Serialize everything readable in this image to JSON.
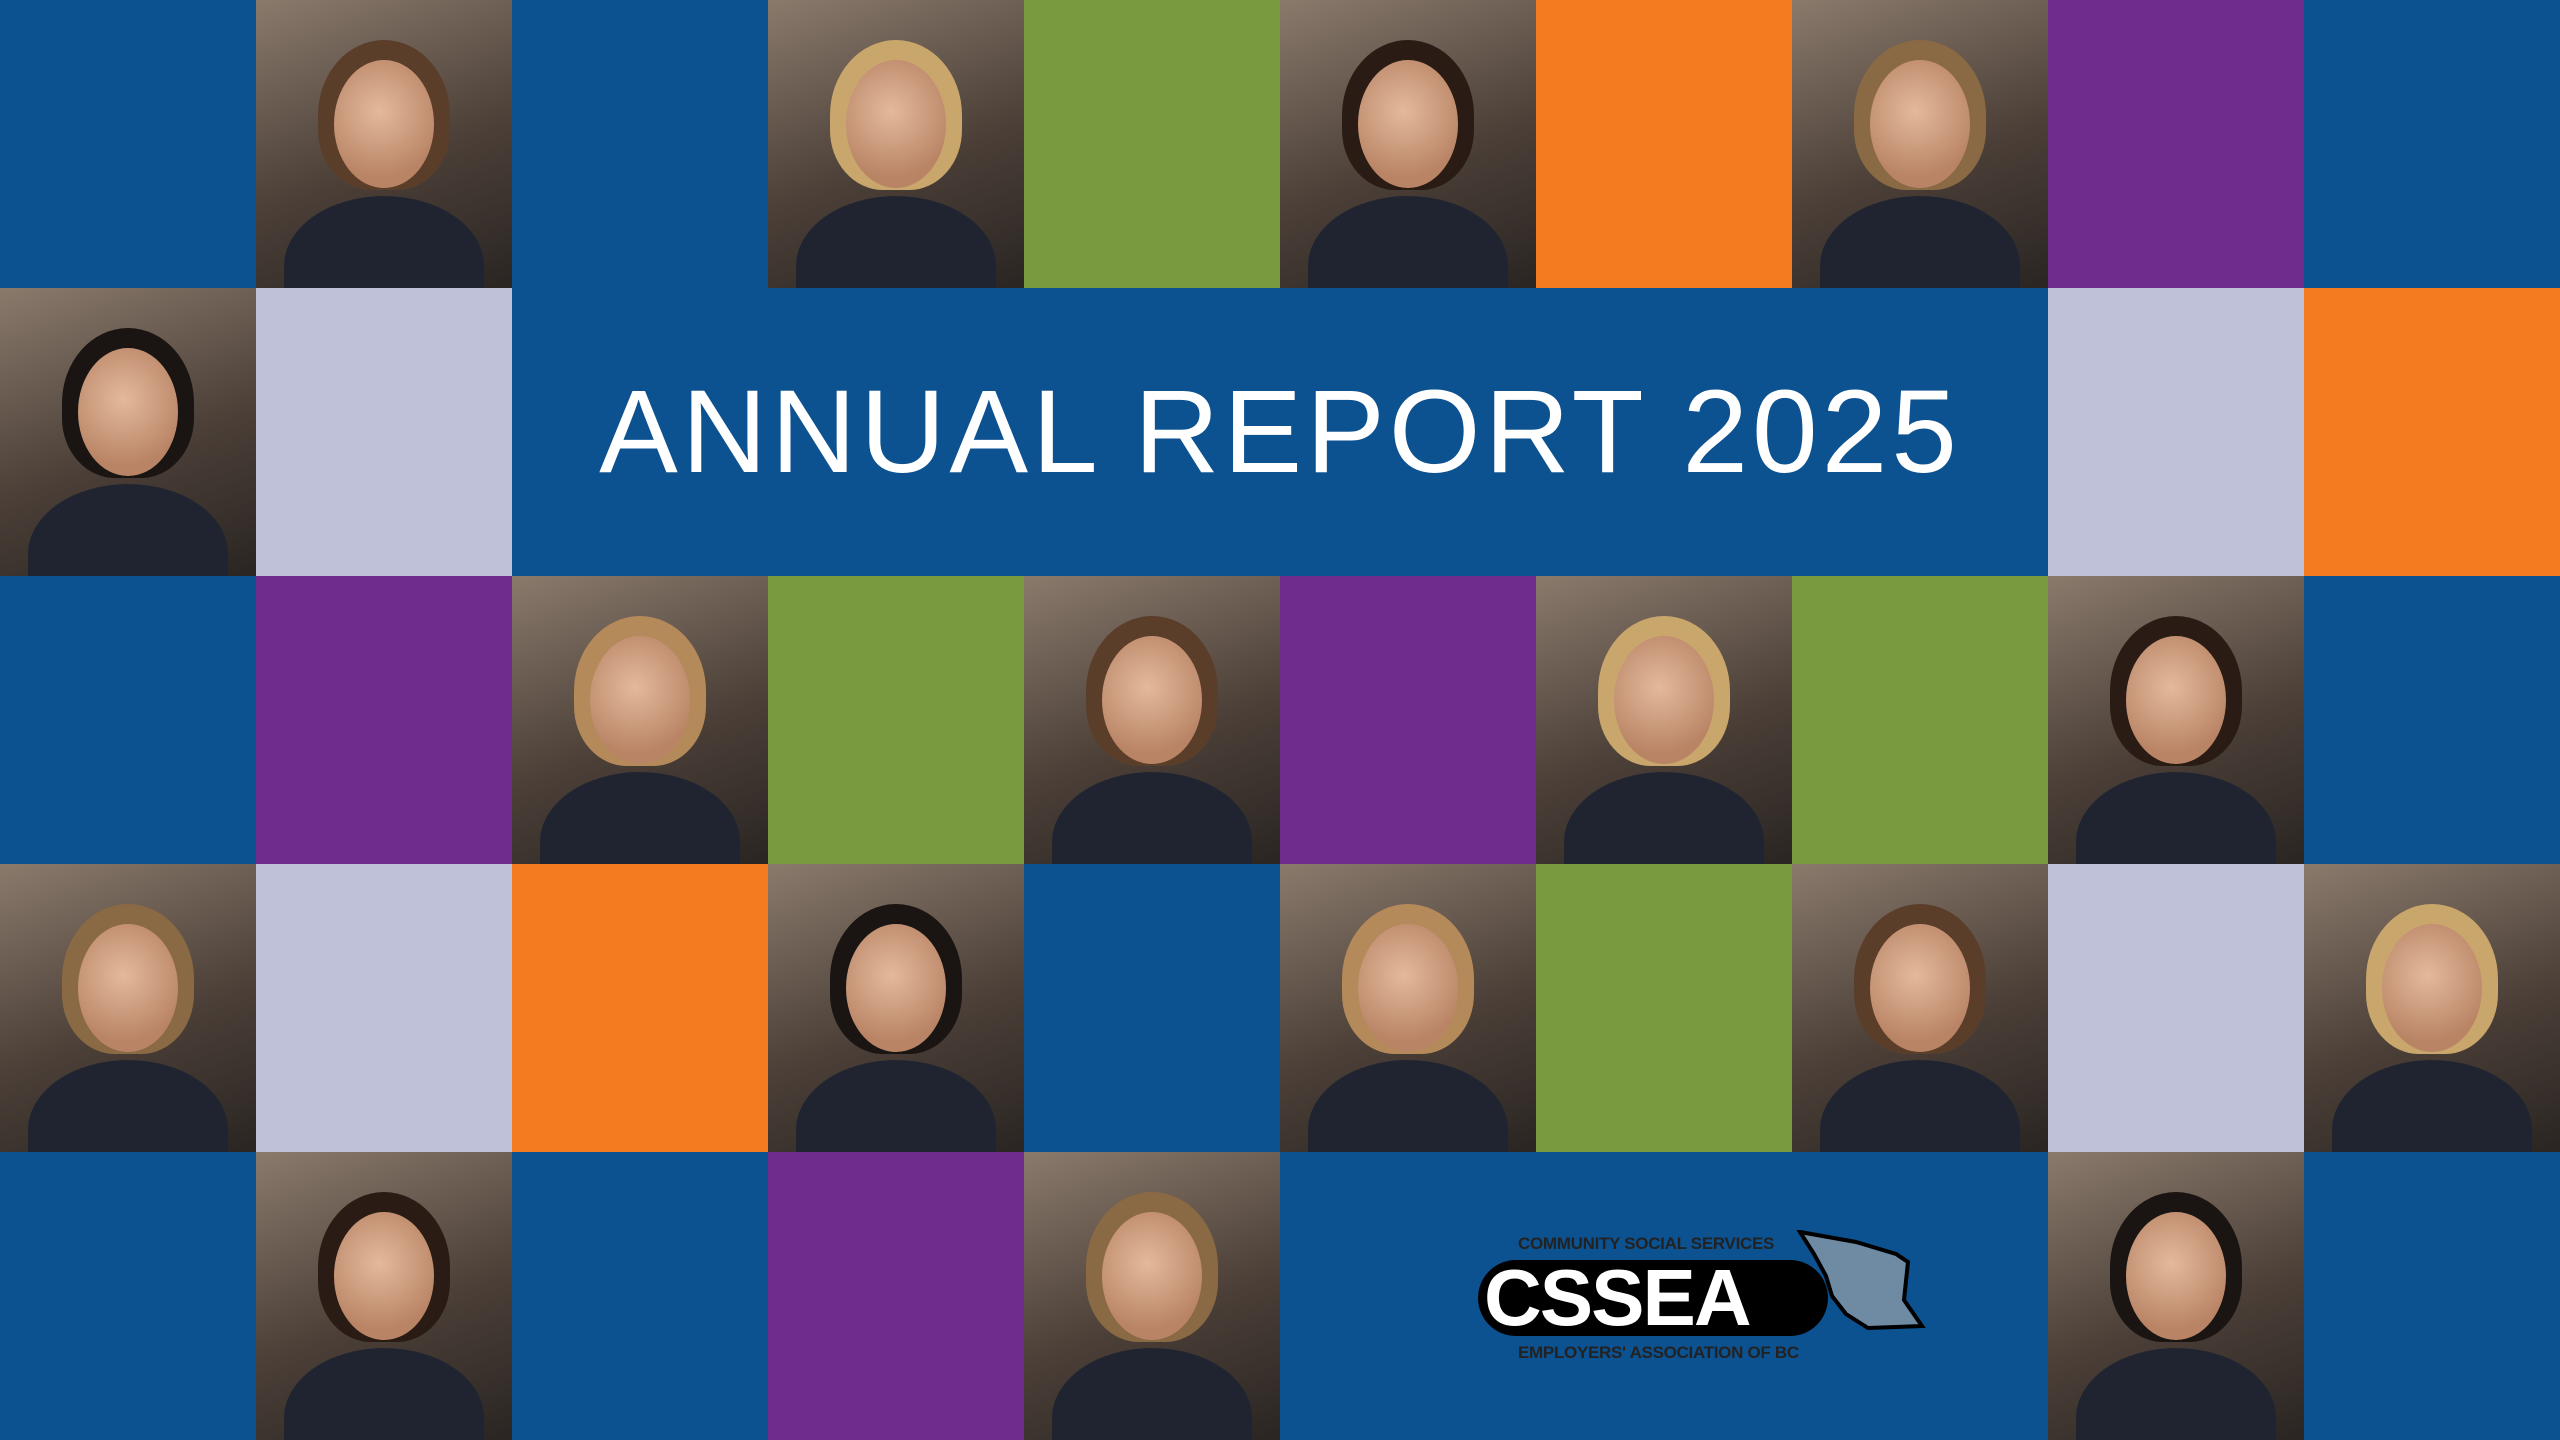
{
  "title": "ANNUAL REPORT 2025",
  "colors": {
    "blue": "#0c5190",
    "green": "#7a9a3e",
    "orange": "#f47b20",
    "purple": "#6f2c8c",
    "lavender": "#bfc1d9"
  },
  "grid": [
    [
      "blue",
      "photo",
      "blue",
      "photo",
      "green",
      "photo",
      "orange",
      "photo",
      "purple",
      "blue"
    ],
    [
      "photo",
      "lavender",
      "title",
      "title",
      "title",
      "title",
      "title",
      "title",
      "lavender",
      "orange"
    ],
    [
      "blue",
      "purple",
      "photo",
      "green",
      "photo",
      "purple",
      "photo",
      "green",
      "photo",
      "blue"
    ],
    [
      "photo",
      "lavender",
      "orange",
      "photo",
      "blue",
      "photo",
      "green",
      "photo",
      "lavender",
      "photo"
    ],
    [
      "blue",
      "photo",
      "blue",
      "purple",
      "photo",
      "logo",
      "logo",
      "logo",
      "photo",
      "blue"
    ]
  ],
  "logo": {
    "top_text": "COMMUNITY SOCIAL SERVICES",
    "wordmark": "CSSEA",
    "bottom_text": "EMPLOYERS' ASSOCIATION OF BC",
    "map_color": "#6f8aa3"
  }
}
